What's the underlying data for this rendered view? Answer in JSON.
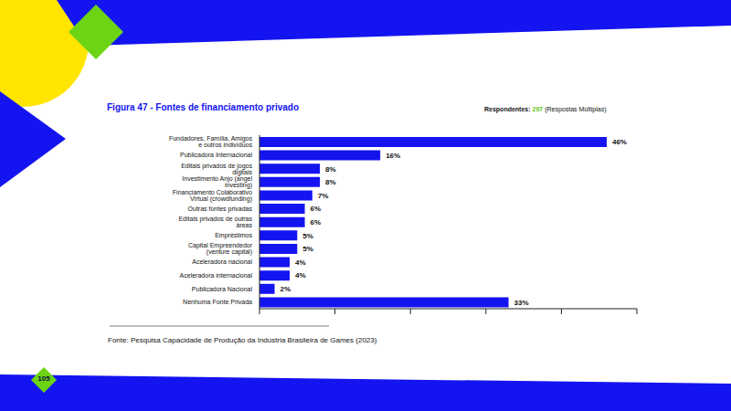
{
  "chart_data": {
    "type": "bar",
    "orientation": "horizontal",
    "title": "Figura 47 - Fontes de financiamento privado",
    "categories": [
      "Fundadores, Família, Amigos e outros indivíduos",
      "Publicadora Internacional",
      "Editais privados de jogos digitais",
      "Investimento Anjo (angel investing)",
      "Financiamento Colaborativo Virtual (crowdfunding)",
      "Outras fontes privadas",
      "Editais privados de outras áreas",
      "Empréstimos",
      "Capital Empreendedor (venture capital)",
      "Aceleradora nacional",
      "Aceleradora internacional",
      "Publicadora Nacional",
      "Nenhuma Fonte Privada"
    ],
    "values": [
      46,
      16,
      8,
      8,
      7,
      6,
      6,
      5,
      5,
      4,
      4,
      2,
      33
    ],
    "value_labels": [
      "46%",
      "16%",
      "8%",
      "8%",
      "7%",
      "6%",
      "6%",
      "5%",
      "5%",
      "4%",
      "4%",
      "2%",
      "33%"
    ],
    "color": "#1414f0",
    "xlim": [
      0,
      50
    ],
    "xticks": [
      0,
      10,
      20,
      30,
      40,
      50
    ],
    "grid": false,
    "data_labels": true,
    "tick_labels": "y"
  },
  "respondents": {
    "label": "Respondentes:",
    "count": 297,
    "note": "(Respostas Múltiplas)"
  },
  "source": "Fonte: Pesquisa Capacidade de Produção da Indústria Brasileira de Games (2023)",
  "page_number": 105
}
